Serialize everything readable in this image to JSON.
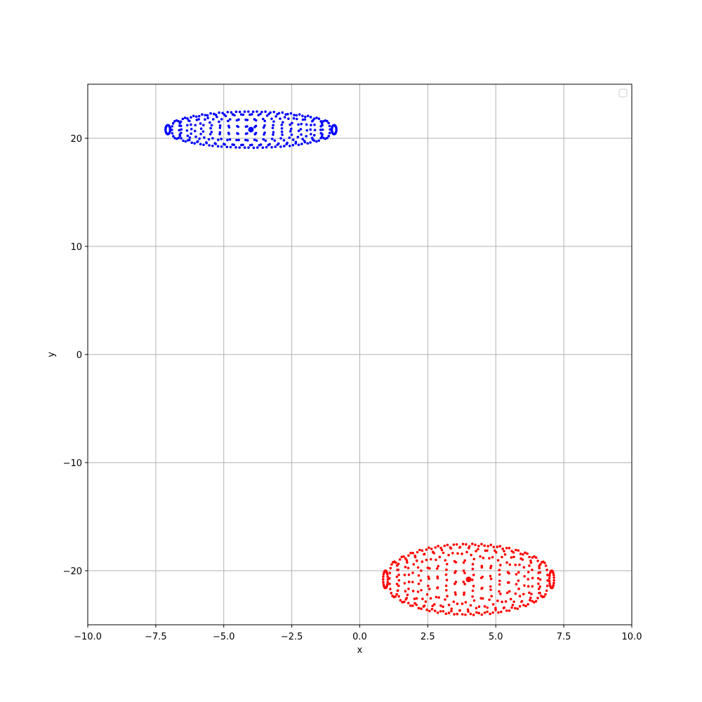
{
  "chart_data": {
    "type": "scatter",
    "title": "",
    "xlabel": "x",
    "ylabel": "y",
    "xlim": [
      -10,
      10
    ],
    "ylim": [
      -25,
      25
    ],
    "x_ticks": [
      -10,
      -7.5,
      -5,
      -2.5,
      0,
      2.5,
      5,
      7.5,
      10
    ],
    "x_tick_labels": [
      "−10.0",
      "−7.5",
      "−5.0",
      "−2.5",
      "0.0",
      "2.5",
      "5.0",
      "7.5",
      "10.0"
    ],
    "y_ticks": [
      -20,
      -10,
      0,
      10,
      20
    ],
    "y_tick_labels": [
      "−20",
      "−10",
      "0",
      "10",
      "20"
    ],
    "grid": true,
    "legend": {
      "placement": "top-right",
      "entries": []
    },
    "series": [
      {
        "color": "#0000ff",
        "center": {
          "x": -4.0,
          "y": 20.8
        },
        "cloud": {
          "x_range": [
            -7.5,
            -0.5
          ],
          "y_range": [
            19.1,
            22.5
          ],
          "arcs": 20,
          "points_per_arc": 16
        }
      },
      {
        "color": "#ff0000",
        "center": {
          "x": 4.0,
          "y": -20.8
        },
        "cloud": {
          "x_range": [
            0.5,
            7.5
          ],
          "y_range": [
            -24.1,
            -17.5
          ],
          "arcs": 20,
          "points_per_arc": 20
        }
      }
    ]
  }
}
